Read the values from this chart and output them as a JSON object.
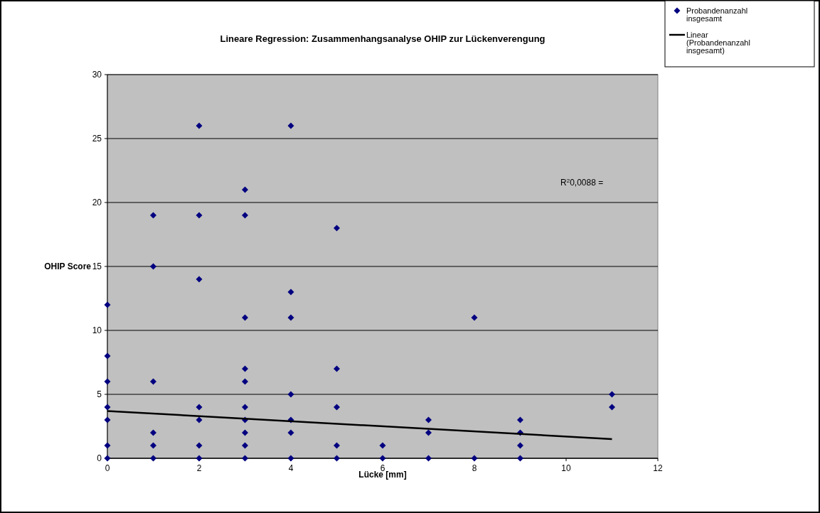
{
  "chart_data": {
    "type": "scatter",
    "title": "Lineare Regression: Zusammenhangsanalyse OHIP zur Lückenverengung",
    "xlabel": "Lücke [mm]",
    "ylabel": "OHIP Score",
    "xlim": [
      0,
      12
    ],
    "xticks": [
      0,
      2,
      4,
      6,
      8,
      10,
      12
    ],
    "ylim": [
      0,
      30
    ],
    "yticks": [
      0,
      5,
      10,
      15,
      20,
      25,
      30
    ],
    "grid": "y",
    "legend": "top right",
    "annotations": [
      "R$^{2}$0,0088 ="
    ],
    "series": [
      {
        "name": "Probandenanzahl insgesamt",
        "marker": "diamond",
        "color": "#000080",
        "x": [
          0,
          0,
          0,
          0,
          0,
          0,
          0,
          1,
          1,
          1,
          1,
          1,
          1,
          2,
          2,
          2,
          2,
          2,
          2,
          2,
          3,
          3,
          3,
          3,
          3,
          3,
          3,
          3,
          3,
          3,
          4,
          4,
          4,
          4,
          4,
          4,
          4,
          5,
          5,
          5,
          5,
          5,
          6,
          6,
          7,
          7,
          7,
          8,
          8,
          9,
          9,
          9,
          9,
          11,
          11
        ],
        "values": [
          0,
          1,
          3,
          4,
          6,
          8,
          12,
          0,
          1,
          2,
          6,
          15,
          19,
          0,
          1,
          3,
          4,
          14,
          19,
          26,
          0,
          1,
          2,
          3,
          4,
          6,
          7,
          11,
          19,
          21,
          0,
          2,
          3,
          5,
          11,
          13,
          26,
          0,
          1,
          4,
          7,
          18,
          0,
          1,
          0,
          2,
          3,
          0,
          11,
          0,
          1,
          2,
          3,
          4,
          5
        ]
      },
      {
        "name": "Linear (Probandenanzahl insgesamt)",
        "type": "line",
        "color": "#000000",
        "x": [
          0,
          11
        ],
        "values": [
          3.7,
          1.5
        ],
        "marker": "none",
        "line_style": "solid"
      }
    ]
  }
}
